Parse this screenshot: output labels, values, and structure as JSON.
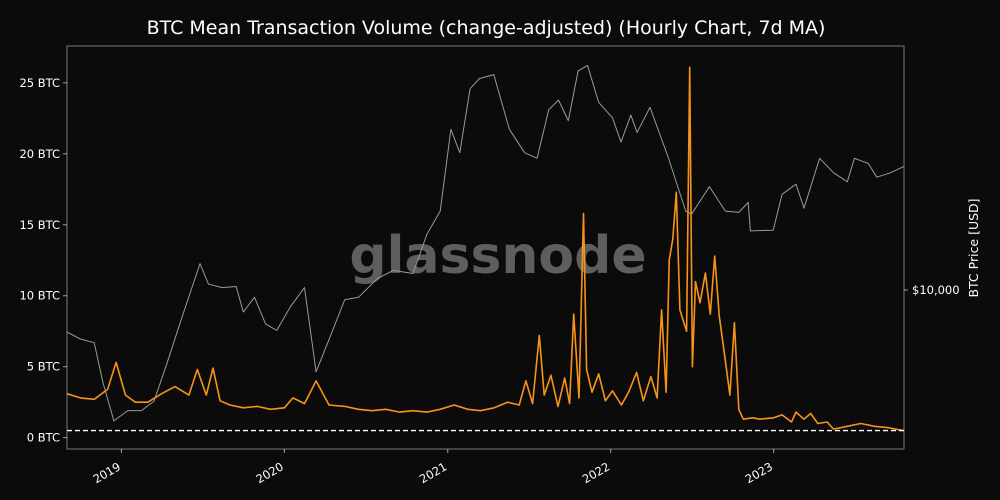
{
  "chart_data": {
    "type": "line",
    "title": "BTC Mean Transaction Volume (change-adjusted) (Hourly Chart, 7d MA)",
    "watermark": "glassnode",
    "x_range": [
      "2018-09-01",
      "2023-10-20"
    ],
    "x_ticks": [
      "2019",
      "2020",
      "2021",
      "2022",
      "2023"
    ],
    "y_left": {
      "range": [
        -0.8,
        27.6
      ],
      "ticks": [
        {
          "value": 0,
          "label": "0 BTC"
        },
        {
          "value": 5,
          "label": "5 BTC"
        },
        {
          "value": 10,
          "label": "10 BTC"
        },
        {
          "value": 15,
          "label": "15 BTC"
        },
        {
          "value": 20,
          "label": "20 BTC"
        },
        {
          "value": 25,
          "label": "25 BTC"
        }
      ]
    },
    "y_right": {
      "label": "BTC Price [USD]",
      "scale": "log",
      "range": [
        2600,
        79000
      ],
      "ticks": [
        {
          "value": 10000,
          "label": "$10,000"
        }
      ]
    },
    "reference_line": {
      "value": 0.5,
      "style": "dashed",
      "color": "#ffffff"
    },
    "grid": false,
    "series": [
      {
        "role": "price",
        "axis": "right",
        "color": "#9a9a9a",
        "points": [
          [
            "2018-09-01",
            7000
          ],
          [
            "2018-10-01",
            6600
          ],
          [
            "2018-11-01",
            6400
          ],
          [
            "2018-11-20",
            4600
          ],
          [
            "2018-12-15",
            3300
          ],
          [
            "2019-01-15",
            3600
          ],
          [
            "2019-02-15",
            3600
          ],
          [
            "2019-03-15",
            3900
          ],
          [
            "2019-04-10",
            5200
          ],
          [
            "2019-05-15",
            7800
          ],
          [
            "2019-06-26",
            12500
          ],
          [
            "2019-07-15",
            10500
          ],
          [
            "2019-08-15",
            10200
          ],
          [
            "2019-09-15",
            10300
          ],
          [
            "2019-10-01",
            8300
          ],
          [
            "2019-10-26",
            9400
          ],
          [
            "2019-11-20",
            7500
          ],
          [
            "2019-12-15",
            7100
          ],
          [
            "2020-01-15",
            8700
          ],
          [
            "2020-02-15",
            10200
          ],
          [
            "2020-03-12",
            5000
          ],
          [
            "2020-04-15",
            6900
          ],
          [
            "2020-05-15",
            9200
          ],
          [
            "2020-06-15",
            9400
          ],
          [
            "2020-07-27",
            11000
          ],
          [
            "2020-09-01",
            11800
          ],
          [
            "2020-10-15",
            11500
          ],
          [
            "2020-11-15",
            16000
          ],
          [
            "2020-12-15",
            19500
          ],
          [
            "2021-01-08",
            39000
          ],
          [
            "2021-01-28",
            32000
          ],
          [
            "2021-02-20",
            55000
          ],
          [
            "2021-03-13",
            60000
          ],
          [
            "2021-04-14",
            62000
          ],
          [
            "2021-05-19",
            39000
          ],
          [
            "2021-06-22",
            32000
          ],
          [
            "2021-07-20",
            30500
          ],
          [
            "2021-08-15",
            46000
          ],
          [
            "2021-09-06",
            50000
          ],
          [
            "2021-09-28",
            42000
          ],
          [
            "2021-10-20",
            64000
          ],
          [
            "2021-11-10",
            67000
          ],
          [
            "2021-12-05",
            49000
          ],
          [
            "2022-01-05",
            43000
          ],
          [
            "2022-01-24",
            35000
          ],
          [
            "2022-02-15",
            44000
          ],
          [
            "2022-03-01",
            38000
          ],
          [
            "2022-03-30",
            47000
          ],
          [
            "2022-05-09",
            31000
          ],
          [
            "2022-06-18",
            19500
          ],
          [
            "2022-07-01",
            19000
          ],
          [
            "2022-08-10",
            24000
          ],
          [
            "2022-09-15",
            19500
          ],
          [
            "2022-10-15",
            19300
          ],
          [
            "2022-11-05",
            21000
          ],
          [
            "2022-11-10",
            16500
          ],
          [
            "2022-12-31",
            16600
          ],
          [
            "2023-01-20",
            22500
          ],
          [
            "2023-02-20",
            24500
          ],
          [
            "2023-03-10",
            20000
          ],
          [
            "2023-04-14",
            30500
          ],
          [
            "2023-05-15",
            27000
          ],
          [
            "2023-06-15",
            25000
          ],
          [
            "2023-07-01",
            30500
          ],
          [
            "2023-08-01",
            29200
          ],
          [
            "2023-08-20",
            26000
          ],
          [
            "2023-09-20",
            27000
          ],
          [
            "2023-10-20",
            28500
          ]
        ]
      },
      {
        "role": "mean_transaction_volume",
        "axis": "left",
        "color": "#f7931a",
        "points": [
          [
            "2018-09-01",
            3.1
          ],
          [
            "2018-10-01",
            2.8
          ],
          [
            "2018-11-01",
            2.7
          ],
          [
            "2018-12-01",
            3.4
          ],
          [
            "2018-12-20",
            5.3
          ],
          [
            "2019-01-10",
            3.0
          ],
          [
            "2019-02-01",
            2.5
          ],
          [
            "2019-03-01",
            2.5
          ],
          [
            "2019-04-01",
            3.1
          ],
          [
            "2019-05-01",
            3.6
          ],
          [
            "2019-06-01",
            3.0
          ],
          [
            "2019-06-20",
            4.8
          ],
          [
            "2019-07-10",
            3.0
          ],
          [
            "2019-07-25",
            4.9
          ],
          [
            "2019-08-10",
            2.6
          ],
          [
            "2019-09-01",
            2.3
          ],
          [
            "2019-10-01",
            2.1
          ],
          [
            "2019-11-01",
            2.2
          ],
          [
            "2019-12-01",
            2.0
          ],
          [
            "2020-01-01",
            2.1
          ],
          [
            "2020-01-20",
            2.8
          ],
          [
            "2020-02-15",
            2.4
          ],
          [
            "2020-03-12",
            4.0
          ],
          [
            "2020-04-10",
            2.3
          ],
          [
            "2020-05-15",
            2.2
          ],
          [
            "2020-06-15",
            2.0
          ],
          [
            "2020-07-15",
            1.9
          ],
          [
            "2020-08-15",
            2.0
          ],
          [
            "2020-09-15",
            1.8
          ],
          [
            "2020-10-15",
            1.9
          ],
          [
            "2020-11-15",
            1.8
          ],
          [
            "2020-12-15",
            2.0
          ],
          [
            "2021-01-15",
            2.3
          ],
          [
            "2021-02-15",
            2.0
          ],
          [
            "2021-03-15",
            1.9
          ],
          [
            "2021-04-15",
            2.1
          ],
          [
            "2021-05-15",
            2.5
          ],
          [
            "2021-06-10",
            2.3
          ],
          [
            "2021-06-25",
            4.0
          ],
          [
            "2021-07-10",
            2.4
          ],
          [
            "2021-07-25",
            7.2
          ],
          [
            "2021-08-05",
            3.0
          ],
          [
            "2021-08-20",
            4.4
          ],
          [
            "2021-09-05",
            2.2
          ],
          [
            "2021-09-20",
            4.2
          ],
          [
            "2021-10-01",
            2.4
          ],
          [
            "2021-10-10",
            8.7
          ],
          [
            "2021-10-22",
            2.8
          ],
          [
            "2021-11-01",
            15.8
          ],
          [
            "2021-11-08",
            4.8
          ],
          [
            "2021-11-20",
            3.2
          ],
          [
            "2021-12-05",
            4.5
          ],
          [
            "2021-12-20",
            2.6
          ],
          [
            "2022-01-05",
            3.3
          ],
          [
            "2022-01-25",
            2.3
          ],
          [
            "2022-02-10",
            3.2
          ],
          [
            "2022-02-28",
            4.6
          ],
          [
            "2022-03-15",
            2.6
          ],
          [
            "2022-04-01",
            4.3
          ],
          [
            "2022-04-15",
            2.8
          ],
          [
            "2022-04-25",
            9.0
          ],
          [
            "2022-05-05",
            3.2
          ],
          [
            "2022-05-12",
            12.5
          ],
          [
            "2022-05-20",
            14.0
          ],
          [
            "2022-05-28",
            17.3
          ],
          [
            "2022-06-05",
            9.0
          ],
          [
            "2022-06-20",
            7.5
          ],
          [
            "2022-06-27",
            26.1
          ],
          [
            "2022-07-03",
            5.0
          ],
          [
            "2022-07-10",
            11.0
          ],
          [
            "2022-07-20",
            9.5
          ],
          [
            "2022-08-01",
            11.6
          ],
          [
            "2022-08-12",
            8.7
          ],
          [
            "2022-08-22",
            12.8
          ],
          [
            "2022-09-01",
            8.6
          ],
          [
            "2022-09-15",
            5.4
          ],
          [
            "2022-09-25",
            3.0
          ],
          [
            "2022-10-05",
            8.1
          ],
          [
            "2022-10-15",
            2.0
          ],
          [
            "2022-10-25",
            1.3
          ],
          [
            "2022-11-15",
            1.4
          ],
          [
            "2022-12-01",
            1.3
          ],
          [
            "2023-01-01",
            1.4
          ],
          [
            "2023-01-20",
            1.6
          ],
          [
            "2023-02-10",
            1.1
          ],
          [
            "2023-02-20",
            1.8
          ],
          [
            "2023-03-10",
            1.3
          ],
          [
            "2023-03-25",
            1.7
          ],
          [
            "2023-04-10",
            1.0
          ],
          [
            "2023-05-01",
            1.1
          ],
          [
            "2023-05-15",
            0.6
          ],
          [
            "2023-06-15",
            0.8
          ],
          [
            "2023-07-15",
            1.0
          ],
          [
            "2023-08-15",
            0.8
          ],
          [
            "2023-09-15",
            0.7
          ],
          [
            "2023-10-20",
            0.5
          ]
        ]
      }
    ]
  }
}
